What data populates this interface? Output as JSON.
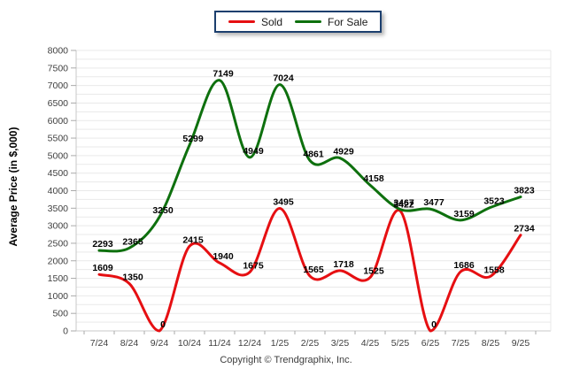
{
  "legend": {
    "items": [
      {
        "label": "Sold"
      },
      {
        "label": "For Sale"
      }
    ]
  },
  "footer": {
    "copyright": "Copyright © Trendgraphix, Inc."
  },
  "chart_data": {
    "type": "line",
    "title": "",
    "xlabel": "",
    "ylabel": "Average Price (in $,000)",
    "ylim": [
      0,
      8000
    ],
    "y_tick_step": 500,
    "grid_step": 250,
    "grid": true,
    "legend_position": "top-center",
    "smooth": true,
    "categories": [
      "7/24",
      "8/24",
      "9/24",
      "10/24",
      "11/24",
      "12/24",
      "1/25",
      "2/25",
      "3/25",
      "4/25",
      "5/25",
      "6/25",
      "7/25",
      "8/25",
      "9/25"
    ],
    "series": [
      {
        "name": "Sold",
        "color": "#e60f12",
        "values": [
          1609,
          1350,
          0,
          2415,
          1940,
          1675,
          3495,
          1565,
          1718,
          1525,
          3422,
          0,
          1686,
          1558,
          2734
        ]
      },
      {
        "name": "For Sale",
        "color": "#0e700e",
        "values": [
          2293,
          2365,
          3250,
          5299,
          7149,
          4949,
          7024,
          4861,
          4929,
          4158,
          3467,
          3477,
          3159,
          3523,
          3823
        ]
      }
    ]
  },
  "colors": {
    "grid_line": "#e9e9e9",
    "axis_line": "#c8c8c8",
    "tick_mark": "#aaaaaa",
    "tick_label": "#3f3f3f",
    "data_label": "#000000",
    "legend_border": "#1c3f6e"
  }
}
